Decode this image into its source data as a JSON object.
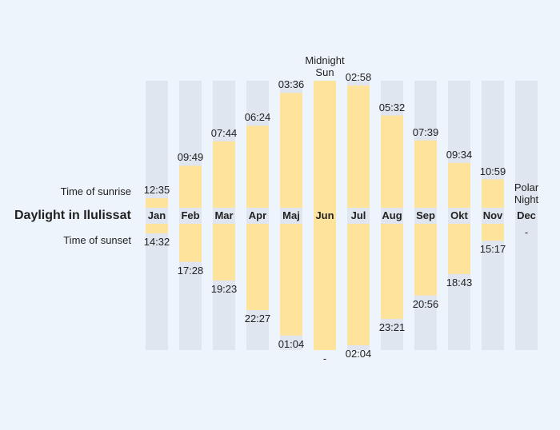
{
  "chart_data": {
    "type": "bar",
    "title": "Daylight in Ilulissat",
    "categories": [
      "Jan",
      "Feb",
      "Mar",
      "Apr",
      "Maj",
      "Jun",
      "Jul",
      "Aug",
      "Sep",
      "Okt",
      "Nov",
      "Dec"
    ],
    "series": [
      {
        "name": "Time of sunrise",
        "color": "#fde39b",
        "values": [
          755,
          589,
          464,
          384,
          216,
          null,
          178,
          332,
          459,
          574,
          659,
          null
        ],
        "value_labels": [
          "12:35",
          "09:49",
          "07:44",
          "06:24",
          "03:36",
          "Midnight Sun",
          "02:58",
          "05:32",
          "07:39",
          "09:34",
          "10:59",
          "Polar Night"
        ]
      },
      {
        "name": "Time of sunset",
        "color": "#fde39b",
        "values": [
          872,
          1048,
          1163,
          1347,
          1504,
          null,
          1564,
          1401,
          1256,
          1123,
          917,
          null
        ],
        "value_labels": [
          "14:32",
          "17:28",
          "19:23",
          "22:27",
          "01:04",
          "-",
          "02:04",
          "23:21",
          "20:56",
          "18:43",
          "15:17",
          "-"
        ]
      }
    ]
  }
}
